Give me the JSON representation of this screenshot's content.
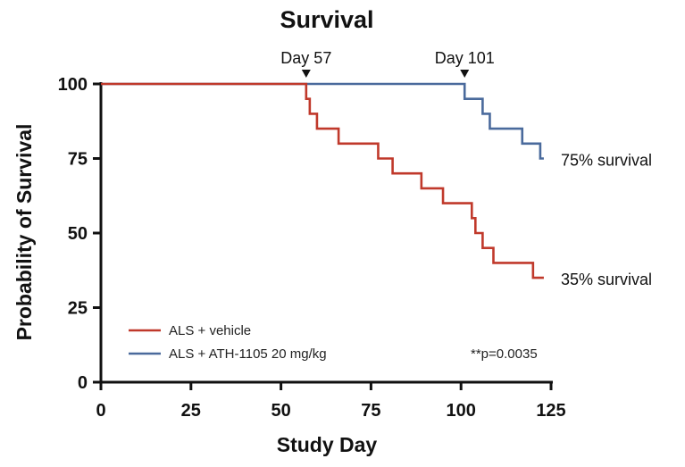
{
  "chart_data": {
    "type": "line",
    "subtype": "kaplan-meier step",
    "title": "Survival",
    "xlabel": "Study Day",
    "ylabel": "Probability of Survival",
    "xlim": [
      0,
      125
    ],
    "ylim": [
      0,
      100
    ],
    "xticks": [
      0,
      25,
      50,
      75,
      100,
      125
    ],
    "yticks": [
      0,
      25,
      50,
      75,
      100
    ],
    "series": [
      {
        "name": "ALS + vehicle",
        "color": "#c0392b",
        "x": [
          0,
          57,
          58,
          60,
          66,
          77,
          81,
          89,
          95,
          103,
          104,
          106,
          109,
          120,
          123
        ],
        "y": [
          100,
          95,
          90,
          85,
          80,
          75,
          70,
          65,
          60,
          55,
          50,
          45,
          40,
          35,
          35
        ]
      },
      {
        "name": "ALS + ATH-1105 20 mg/kg",
        "color": "#4a6a9c",
        "x": [
          0,
          101,
          106,
          108,
          117,
          122,
          123
        ],
        "y": [
          100,
          95,
          90,
          85,
          80,
          75,
          75
        ]
      }
    ],
    "markers": [
      {
        "label": "Day 57",
        "x": 57
      },
      {
        "label": "Day 101",
        "x": 101
      }
    ],
    "end_labels": [
      {
        "text": "75% survival",
        "y": 75
      },
      {
        "text": "35% survival",
        "y": 35
      }
    ],
    "pvalue": "**p=0.0035",
    "legend_position": "bottom-left"
  }
}
